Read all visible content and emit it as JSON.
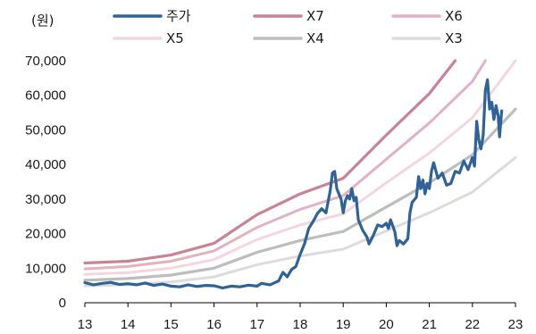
{
  "chart_data": {
    "type": "line",
    "ylabel_unit": "(원)",
    "xlim": [
      13,
      23
    ],
    "ylim": [
      0,
      70000
    ],
    "x_ticks": [
      "13",
      "14",
      "15",
      "16",
      "17",
      "18",
      "19",
      "20",
      "21",
      "22",
      "23"
    ],
    "y_ticks": [
      "0",
      "10,000",
      "20,000",
      "30,000",
      "40,000",
      "50,000",
      "60,000",
      "70,000"
    ],
    "y_tick_values": [
      0,
      10000,
      20000,
      30000,
      40000,
      50000,
      60000,
      70000
    ],
    "legend_placement": "top",
    "series": [
      {
        "name": "주가",
        "color": "#2f6397",
        "width": 3.2,
        "points": [
          [
            13.0,
            5800
          ],
          [
            13.2,
            5200
          ],
          [
            13.4,
            5600
          ],
          [
            13.6,
            5900
          ],
          [
            13.8,
            5300
          ],
          [
            14.0,
            5500
          ],
          [
            14.2,
            5200
          ],
          [
            14.4,
            5700
          ],
          [
            14.6,
            5000
          ],
          [
            14.8,
            5400
          ],
          [
            15.0,
            4800
          ],
          [
            15.2,
            4600
          ],
          [
            15.4,
            5200
          ],
          [
            15.6,
            4700
          ],
          [
            15.8,
            5000
          ],
          [
            16.0,
            4900
          ],
          [
            16.2,
            4300
          ],
          [
            16.4,
            4800
          ],
          [
            16.6,
            4600
          ],
          [
            16.8,
            5100
          ],
          [
            17.0,
            4800
          ],
          [
            17.1,
            5600
          ],
          [
            17.3,
            5200
          ],
          [
            17.5,
            6300
          ],
          [
            17.6,
            8800
          ],
          [
            17.7,
            7500
          ],
          [
            17.8,
            9600
          ],
          [
            17.9,
            10500
          ],
          [
            18.0,
            14000
          ],
          [
            18.1,
            17000
          ],
          [
            18.2,
            21500
          ],
          [
            18.3,
            23500
          ],
          [
            18.4,
            25800
          ],
          [
            18.5,
            27200
          ],
          [
            18.6,
            26000
          ],
          [
            18.7,
            32500
          ],
          [
            18.75,
            37500
          ],
          [
            18.8,
            38000
          ],
          [
            18.85,
            33000
          ],
          [
            18.9,
            31500
          ],
          [
            18.95,
            30000
          ],
          [
            19.0,
            26000
          ],
          [
            19.05,
            29500
          ],
          [
            19.1,
            31000
          ],
          [
            19.15,
            30000
          ],
          [
            19.2,
            33000
          ],
          [
            19.25,
            29500
          ],
          [
            19.3,
            30500
          ],
          [
            19.35,
            24000
          ],
          [
            19.45,
            21000
          ],
          [
            19.55,
            19000
          ],
          [
            19.6,
            17000
          ],
          [
            19.7,
            19500
          ],
          [
            19.8,
            22500
          ],
          [
            19.9,
            22000
          ],
          [
            20.0,
            23000
          ],
          [
            20.05,
            21500
          ],
          [
            20.1,
            24000
          ],
          [
            20.2,
            20500
          ],
          [
            20.25,
            16500
          ],
          [
            20.3,
            18000
          ],
          [
            20.4,
            17000
          ],
          [
            20.5,
            18500
          ],
          [
            20.55,
            26000
          ],
          [
            20.6,
            29000
          ],
          [
            20.7,
            30500
          ],
          [
            20.75,
            36500
          ],
          [
            20.8,
            33000
          ],
          [
            20.85,
            35500
          ],
          [
            20.9,
            31500
          ],
          [
            20.95,
            34500
          ],
          [
            21.0,
            33000
          ],
          [
            21.05,
            38000
          ],
          [
            21.1,
            40500
          ],
          [
            21.2,
            36000
          ],
          [
            21.3,
            37500
          ],
          [
            21.4,
            34000
          ],
          [
            21.5,
            34500
          ],
          [
            21.6,
            38000
          ],
          [
            21.7,
            37500
          ],
          [
            21.8,
            41000
          ],
          [
            21.9,
            38500
          ],
          [
            22.0,
            42000
          ],
          [
            22.05,
            39500
          ],
          [
            22.1,
            52500
          ],
          [
            22.15,
            47000
          ],
          [
            22.2,
            44500
          ],
          [
            22.25,
            48500
          ],
          [
            22.3,
            61500
          ],
          [
            22.35,
            64500
          ],
          [
            22.4,
            56000
          ],
          [
            22.45,
            58000
          ],
          [
            22.5,
            53000
          ],
          [
            22.55,
            57000
          ],
          [
            22.6,
            54000
          ],
          [
            22.63,
            48000
          ],
          [
            22.68,
            55500
          ]
        ]
      },
      {
        "name": "X7",
        "color": "#c98397",
        "width": 3.2,
        "points": [
          [
            13,
            11500
          ],
          [
            14,
            12000
          ],
          [
            15,
            13800
          ],
          [
            16,
            17200
          ],
          [
            17,
            25500
          ],
          [
            18,
            31500
          ],
          [
            19,
            36000
          ],
          [
            20,
            48500
          ],
          [
            21,
            60500
          ],
          [
            21.6,
            70000
          ]
        ]
      },
      {
        "name": "X6",
        "color": "#e3b2c0",
        "width": 3.0,
        "points": [
          [
            13,
            9800
          ],
          [
            14,
            10500
          ],
          [
            15,
            12000
          ],
          [
            16,
            15000
          ],
          [
            17,
            21800
          ],
          [
            18,
            27000
          ],
          [
            19,
            31000
          ],
          [
            20,
            41500
          ],
          [
            21,
            52000
          ],
          [
            22,
            64000
          ],
          [
            22.3,
            70000
          ]
        ]
      },
      {
        "name": "X5",
        "color": "#f3d6de",
        "width": 3.0,
        "points": [
          [
            13,
            8200
          ],
          [
            14,
            8700
          ],
          [
            15,
            10000
          ],
          [
            16,
            12500
          ],
          [
            17,
            18300
          ],
          [
            18,
            22500
          ],
          [
            19,
            25700
          ],
          [
            20,
            34700
          ],
          [
            21,
            43300
          ],
          [
            22,
            53500
          ],
          [
            23,
            70000
          ]
        ]
      },
      {
        "name": "X4",
        "color": "#bdbdbd",
        "width": 3.2,
        "points": [
          [
            13,
            6500
          ],
          [
            14,
            7000
          ],
          [
            15,
            8000
          ],
          [
            16,
            10000
          ],
          [
            17,
            14600
          ],
          [
            18,
            18000
          ],
          [
            19,
            20600
          ],
          [
            20,
            27700
          ],
          [
            21,
            34700
          ],
          [
            22,
            42800
          ],
          [
            23,
            56000
          ]
        ]
      },
      {
        "name": "X3",
        "color": "#dcdcdc",
        "width": 3.0,
        "points": [
          [
            13,
            4900
          ],
          [
            14,
            5200
          ],
          [
            15,
            6000
          ],
          [
            16,
            7500
          ],
          [
            17,
            11000
          ],
          [
            18,
            13500
          ],
          [
            19,
            15500
          ],
          [
            20,
            20800
          ],
          [
            21,
            26000
          ],
          [
            22,
            32000
          ],
          [
            23,
            42000
          ]
        ]
      }
    ]
  }
}
